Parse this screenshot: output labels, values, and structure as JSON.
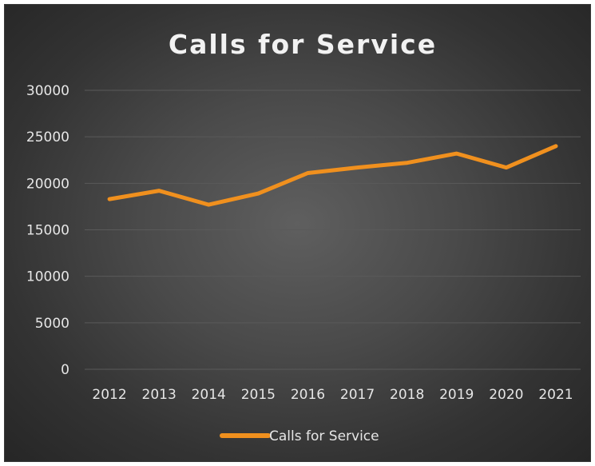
{
  "chart_data": {
    "type": "line",
    "title": "Calls for Service",
    "xlabel": "",
    "ylabel": "",
    "categories": [
      "2012",
      "2013",
      "2014",
      "2015",
      "2016",
      "2017",
      "2018",
      "2019",
      "2020",
      "2021"
    ],
    "series": [
      {
        "name": "Calls for Service",
        "values": [
          18300,
          19200,
          17700,
          18900,
          21100,
          21700,
          22200,
          23200,
          21700,
          24000
        ]
      }
    ],
    "ylim": [
      0,
      30000
    ],
    "yticks": [
      "0",
      "5000",
      "10000",
      "15000",
      "20000",
      "25000",
      "30000"
    ],
    "grid": true,
    "legend": "bottom",
    "colors": {
      "series": "#f0901e",
      "background": "#3f3f3f",
      "gridline": "#5a5a5a",
      "text": "#e6e6e6"
    }
  }
}
